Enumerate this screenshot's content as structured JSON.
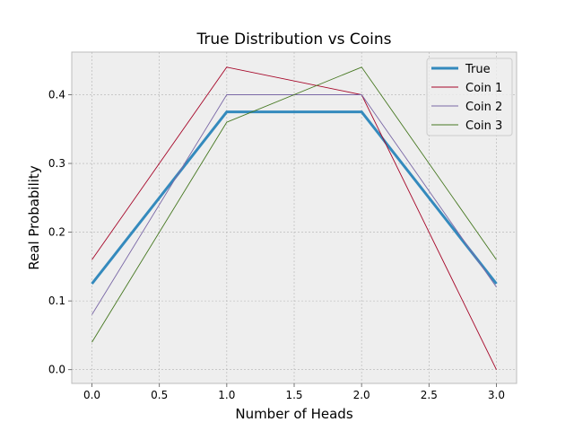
{
  "chart_data": {
    "type": "line",
    "title": "True Distribution vs Coins",
    "xlabel": "Number of Heads",
    "ylabel": "Real Probability",
    "xlim": [
      -0.15,
      3.15
    ],
    "ylim": [
      -0.02,
      0.462
    ],
    "xticks": [
      0.0,
      0.5,
      1.0,
      1.5,
      2.0,
      2.5,
      3.0
    ],
    "xtick_labels": [
      "0.0",
      "0.5",
      "1.0",
      "1.5",
      "2.0",
      "2.5",
      "3.0"
    ],
    "yticks": [
      0.0,
      0.1,
      0.2,
      0.3,
      0.4
    ],
    "ytick_labels": [
      "0.0",
      "0.1",
      "0.2",
      "0.3",
      "0.4"
    ],
    "grid": true,
    "legend_position": "top-right",
    "x": [
      0,
      1,
      2,
      3
    ],
    "series": [
      {
        "name": "True",
        "color": "#348abd",
        "width": "thick",
        "values": [
          0.125,
          0.375,
          0.375,
          0.125
        ]
      },
      {
        "name": "Coin 1",
        "color": "#a60628",
        "width": "thin",
        "values": [
          0.16,
          0.44,
          0.4,
          0.0
        ]
      },
      {
        "name": "Coin 2",
        "color": "#7a68a6",
        "width": "thin",
        "values": [
          0.08,
          0.4,
          0.4,
          0.12
        ]
      },
      {
        "name": "Coin 3",
        "color": "#467821",
        "width": "thin",
        "values": [
          0.04,
          0.36,
          0.44,
          0.16
        ]
      }
    ]
  }
}
